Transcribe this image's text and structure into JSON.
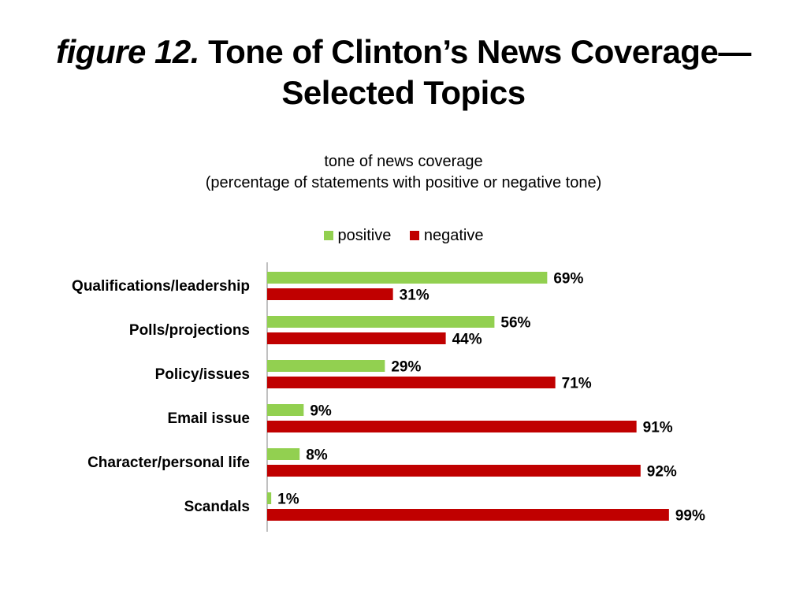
{
  "title": {
    "figure_prefix": "figure 12.",
    "line1": "Tone of Clinton’s News Coverage—",
    "line2": "Selected Topics"
  },
  "subtitle": {
    "line1": "tone of news coverage",
    "line2": "(percentage of statements with positive or negative tone)"
  },
  "legend": [
    {
      "label": "positive",
      "color": "#92d050"
    },
    {
      "label": "negative",
      "color": "#c00000"
    }
  ],
  "chart_data": {
    "type": "bar",
    "orientation": "horizontal",
    "categories": [
      "Qualifications/leadership",
      "Polls/projections",
      "Policy/issues",
      "Email issue",
      "Character/personal life",
      "Scandals"
    ],
    "series": [
      {
        "name": "positive",
        "color": "#92d050",
        "values": [
          69,
          56,
          29,
          9,
          8,
          1
        ],
        "labels": [
          "69%",
          "56%",
          "29%",
          "9%",
          "8%",
          "1%"
        ]
      },
      {
        "name": "negative",
        "color": "#c00000",
        "values": [
          31,
          44,
          71,
          91,
          92,
          99
        ],
        "labels": [
          "31%",
          "44%",
          "71%",
          "91%",
          "92%",
          "99%"
        ]
      }
    ],
    "xlim": [
      0,
      100
    ],
    "grid": false,
    "legend_position": "top-center"
  }
}
